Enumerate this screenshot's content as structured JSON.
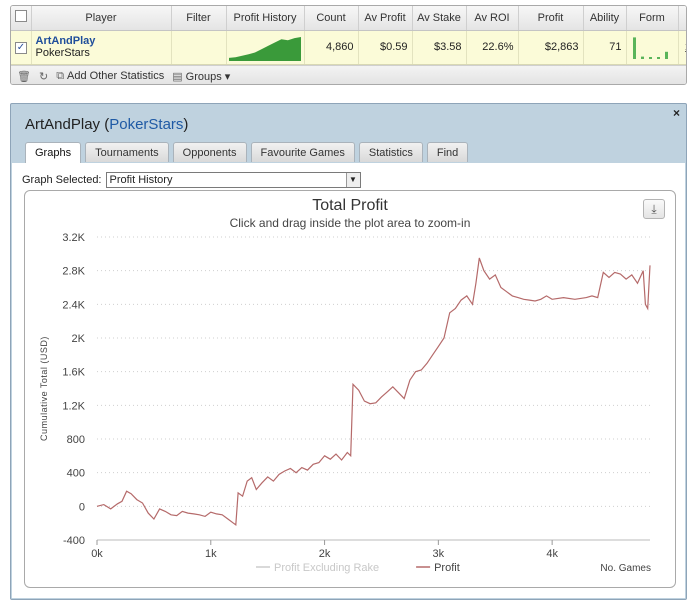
{
  "stats_table": {
    "headers": [
      "Player",
      "Filter",
      "Profit History",
      "Count",
      "Av Profit",
      "Av Stake",
      "Av ROI",
      "Profit",
      "Ability",
      "Form"
    ],
    "row": {
      "checked": true,
      "player": "ArtAndPlay",
      "site": "PokerStars",
      "filter": "",
      "count": "4,860",
      "av_profit": "$0.59",
      "av_stake": "$3.58",
      "av_roi": "22.6%",
      "profit": "$2,863",
      "ability": "71",
      "remove": "x",
      "sparkline": [
        0.05,
        0.08,
        0.15,
        0.22,
        0.3,
        0.45,
        0.6,
        0.75,
        0.9,
        0.85,
        0.95,
        1.0
      ],
      "form_bars": [
        0.9,
        0.1,
        0.05,
        0.05,
        0.3
      ]
    },
    "toolbar": {
      "add_stats": "Add Other Statistics",
      "groups": "Groups ▾"
    }
  },
  "window": {
    "title_player": "ArtAndPlay",
    "title_site": "PokerStars",
    "close": "×",
    "tabs": [
      "Graphs",
      "Tournaments",
      "Opponents",
      "Favourite Games",
      "Statistics",
      "Find"
    ],
    "active_tab": "Graphs",
    "graph_selected_label": "Graph Selected:",
    "graph_selected_value": "Profit History"
  },
  "colors": {
    "accent": "#1f5aa5",
    "row_highlight": "#fbfbd8",
    "window_bg": "#bfd2df",
    "profit_line": "#b56a6a",
    "rake_line": "#cccccc",
    "sparkline": "#3a9a3a"
  },
  "chart_data": {
    "type": "line",
    "title": "Total Profit",
    "subtitle": "Click and drag inside the plot area to zoom-in",
    "ylabel": "Cumulative Total (USD)",
    "xlabel": "No. Games",
    "ylim": [
      -400,
      3200
    ],
    "xlim": [
      0,
      4860
    ],
    "yticks": [
      "-400",
      "0",
      "400",
      "800",
      "1.2K",
      "1.6K",
      "2K",
      "2.4K",
      "2.8K",
      "3.2K"
    ],
    "ytick_values": [
      -400,
      0,
      400,
      800,
      1200,
      1600,
      2000,
      2400,
      2800,
      3200
    ],
    "xticks": [
      "0k",
      "1k",
      "2k",
      "3k",
      "4k"
    ],
    "xtick_values": [
      0,
      1000,
      2000,
      3000,
      4000
    ],
    "grid": true,
    "legend_position": "bottom-center",
    "series": [
      {
        "name": "Profit Excluding Rake",
        "color": "#cccccc",
        "x": [],
        "y": []
      },
      {
        "name": "Profit",
        "color": "#b56a6a",
        "x": [
          0,
          60,
          120,
          180,
          220,
          260,
          300,
          350,
          400,
          450,
          500,
          550,
          600,
          650,
          700,
          750,
          800,
          850,
          900,
          950,
          1000,
          1050,
          1100,
          1150,
          1200,
          1220,
          1240,
          1280,
          1320,
          1360,
          1400,
          1450,
          1500,
          1550,
          1600,
          1650,
          1700,
          1750,
          1800,
          1850,
          1900,
          1950,
          2000,
          2050,
          2100,
          2150,
          2200,
          2230,
          2250,
          2300,
          2350,
          2400,
          2450,
          2500,
          2550,
          2600,
          2650,
          2700,
          2750,
          2800,
          2850,
          2900,
          2950,
          3000,
          3050,
          3100,
          3150,
          3200,
          3250,
          3300,
          3330,
          3360,
          3400,
          3450,
          3500,
          3550,
          3600,
          3650,
          3700,
          3750,
          3800,
          3850,
          3900,
          3950,
          4000,
          4100,
          4200,
          4300,
          4350,
          4400,
          4450,
          4500,
          4550,
          4600,
          4650,
          4700,
          4750,
          4800,
          4820,
          4840,
          4860
        ],
        "y": [
          0,
          20,
          -30,
          30,
          60,
          180,
          150,
          80,
          40,
          -80,
          -150,
          -30,
          -60,
          -100,
          -110,
          -60,
          -80,
          -90,
          -100,
          -120,
          -70,
          -90,
          -100,
          -150,
          -200,
          -220,
          160,
          120,
          300,
          340,
          200,
          280,
          350,
          300,
          380,
          420,
          450,
          400,
          460,
          430,
          500,
          520,
          600,
          560,
          620,
          550,
          640,
          600,
          1450,
          1380,
          1250,
          1220,
          1230,
          1300,
          1360,
          1420,
          1350,
          1280,
          1500,
          1600,
          1620,
          1700,
          1800,
          1900,
          2000,
          2300,
          2350,
          2450,
          2500,
          2400,
          2650,
          2950,
          2800,
          2700,
          2750,
          2600,
          2550,
          2500,
          2480,
          2460,
          2450,
          2440,
          2460,
          2500,
          2460,
          2480,
          2460,
          2480,
          2500,
          2480,
          2780,
          2720,
          2780,
          2760,
          2700,
          2750,
          2650,
          2800,
          2400,
          2350,
          2863
        ]
      }
    ]
  }
}
